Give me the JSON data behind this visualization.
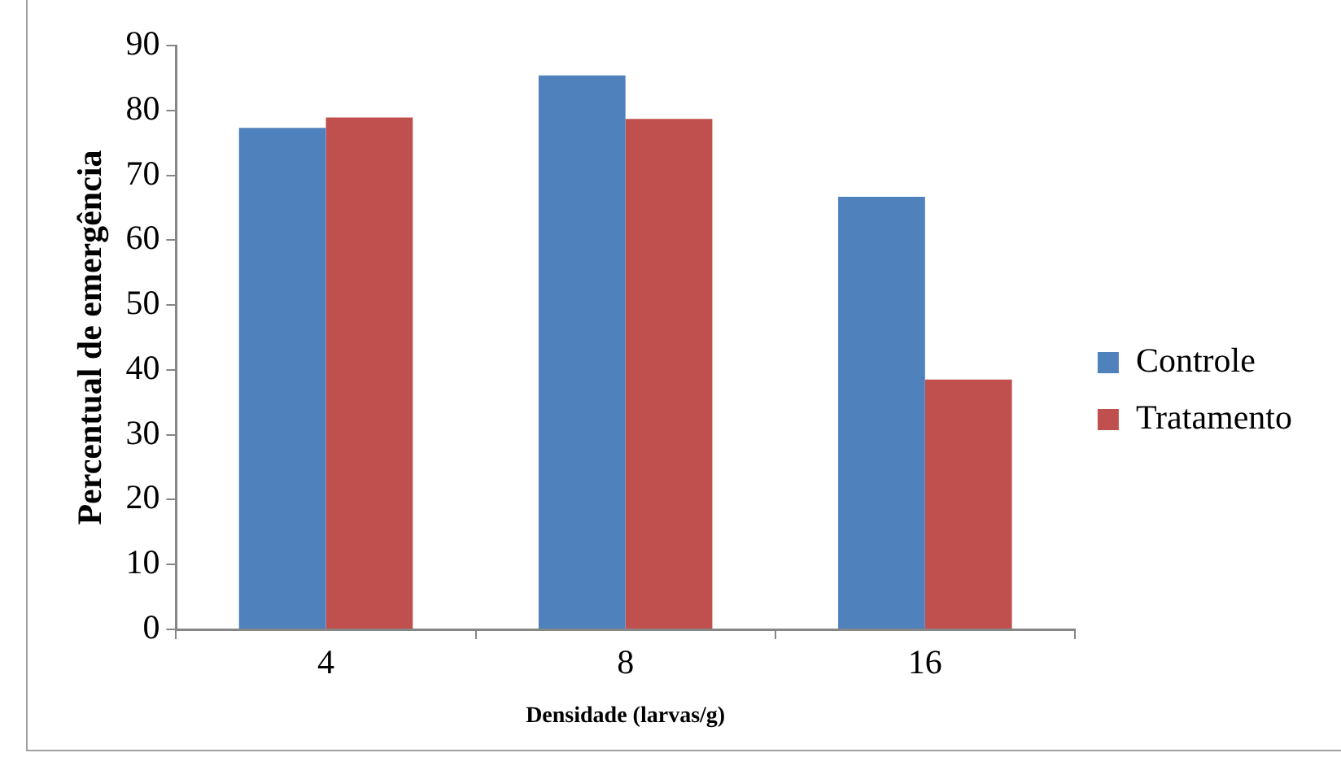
{
  "chart_data": {
    "type": "bar",
    "xlabel": "Densidade (larvas/g)",
    "ylabel": "Percentual de emergência",
    "categories": [
      "4",
      "8",
      "16"
    ],
    "series": [
      {
        "name": "Controle",
        "color": "#4f81bd",
        "values": [
          77.3,
          85.4,
          66.7
        ]
      },
      {
        "name": "Tratamento",
        "color": "#c0504d",
        "values": [
          78.9,
          78.7,
          38.5
        ]
      }
    ],
    "ylim": [
      0,
      90
    ],
    "yticks": [
      0,
      10,
      20,
      30,
      40,
      50,
      60,
      70,
      80,
      90
    ],
    "grid": false,
    "legend": "right"
  }
}
